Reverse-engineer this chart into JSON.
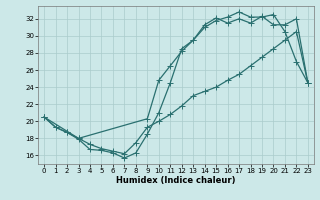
{
  "xlabel": "Humidex (Indice chaleur)",
  "xlim": [
    -0.5,
    23.5
  ],
  "ylim": [
    15.0,
    33.5
  ],
  "xticks": [
    0,
    1,
    2,
    3,
    4,
    5,
    6,
    7,
    8,
    9,
    10,
    11,
    12,
    13,
    14,
    15,
    16,
    17,
    18,
    19,
    20,
    21,
    22,
    23
  ],
  "yticks": [
    16,
    18,
    20,
    22,
    24,
    26,
    28,
    30,
    32
  ],
  "bg_color": "#cce8e8",
  "grid_color": "#aacccc",
  "line_color": "#2a7070",
  "line1_x": [
    0,
    1,
    2,
    3,
    4,
    5,
    6,
    7,
    8,
    9,
    10,
    11,
    12,
    13,
    14,
    15,
    16,
    17,
    18,
    19,
    20,
    21,
    22,
    23
  ],
  "line1_y": [
    20.5,
    19.3,
    18.7,
    17.9,
    16.7,
    16.6,
    16.3,
    15.7,
    16.3,
    18.5,
    21.0,
    24.5,
    28.5,
    29.5,
    31.0,
    31.8,
    32.2,
    32.8,
    32.2,
    32.2,
    32.5,
    30.5,
    27.0,
    24.5
  ],
  "line2_x": [
    0,
    1,
    2,
    3,
    9,
    10,
    11,
    12,
    13,
    14,
    15,
    16,
    17,
    18,
    19,
    20,
    21,
    22,
    23
  ],
  "line2_y": [
    20.5,
    19.3,
    18.7,
    18.0,
    20.3,
    24.8,
    26.5,
    28.2,
    29.5,
    31.3,
    32.1,
    31.5,
    32.0,
    31.5,
    32.3,
    31.3,
    31.3,
    32.0,
    24.5
  ],
  "line3_x": [
    0,
    3,
    4,
    5,
    6,
    7,
    8,
    9,
    10,
    11,
    12,
    13,
    14,
    15,
    16,
    17,
    18,
    19,
    20,
    21,
    22,
    23
  ],
  "line3_y": [
    20.5,
    18.0,
    17.3,
    16.8,
    16.5,
    16.2,
    17.5,
    19.3,
    20.0,
    20.8,
    21.8,
    23.0,
    23.5,
    24.0,
    24.8,
    25.5,
    26.5,
    27.5,
    28.5,
    29.5,
    30.5,
    24.5
  ]
}
